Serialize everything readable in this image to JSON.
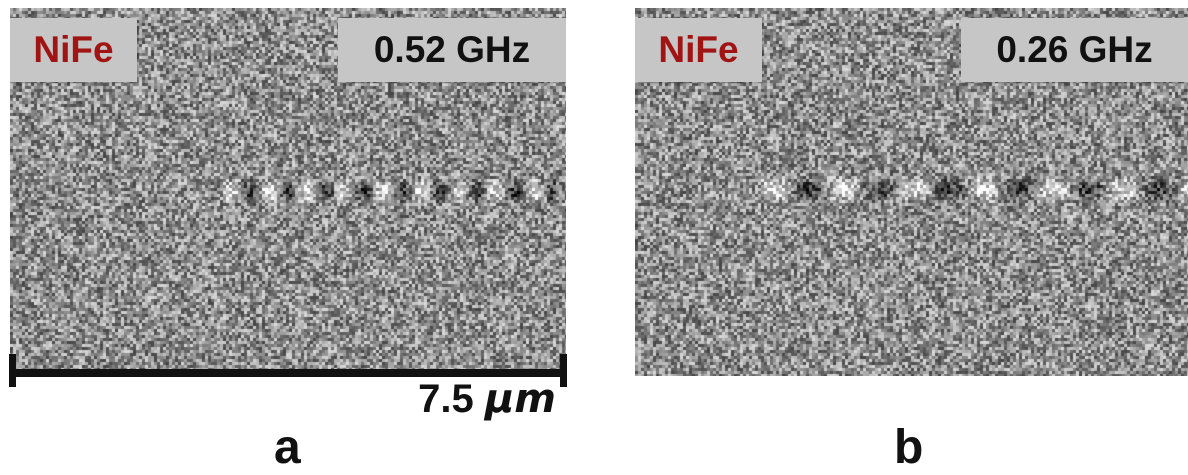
{
  "panels": [
    {
      "id": "a",
      "material": "NiFe",
      "frequency": "0.52 GHz",
      "letter": "a"
    },
    {
      "id": "b",
      "material": "NiFe",
      "frequency": "0.26 GHz",
      "letter": "b"
    }
  ],
  "scale_bar": {
    "value": "7.5 ",
    "unit": "µm"
  },
  "colors": {
    "material_text": "#a01414",
    "tag_background": "#c6c6c6",
    "image_gray": "#8f8f8f"
  }
}
